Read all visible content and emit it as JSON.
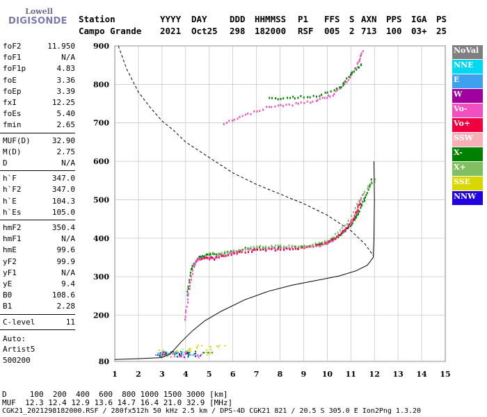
{
  "logo": {
    "line1": "Lowell",
    "line2": "DIGISONDE"
  },
  "header": {
    "labels": [
      "Station",
      "YYYY",
      "DAY",
      "DDD",
      "HHMMSS",
      "P1",
      "FFS",
      "S",
      "AXN",
      "PPS",
      "IGA",
      "PS"
    ],
    "values": [
      "Campo Grande",
      "2021",
      "Oct25",
      "298",
      "182000",
      "RSF",
      "005",
      "2",
      "713",
      "100",
      "03+",
      "25"
    ]
  },
  "params": {
    "g1": [
      {
        "k": "foF2",
        "v": "11.950"
      },
      {
        "k": "foF1",
        "v": "N/A"
      },
      {
        "k": "foF1p",
        "v": "4.83"
      },
      {
        "k": "foE",
        "v": "3.36"
      },
      {
        "k": "foEp",
        "v": "3.39"
      },
      {
        "k": "fxI",
        "v": "12.25"
      },
      {
        "k": "foEs",
        "v": "5.40"
      },
      {
        "k": "fmin",
        "v": "2.65"
      }
    ],
    "g2": [
      {
        "k": "MUF(D)",
        "v": "32.90"
      },
      {
        "k": "M(D)",
        "v": "2.75"
      },
      {
        "k": "D",
        "v": "N/A"
      }
    ],
    "g3": [
      {
        "k": "h`F",
        "v": "347.0"
      },
      {
        "k": "h`F2",
        "v": "347.0"
      },
      {
        "k": "h`E",
        "v": "104.3"
      },
      {
        "k": "h`Es",
        "v": "105.0"
      }
    ],
    "g4": [
      {
        "k": "hmF2",
        "v": "350.4"
      },
      {
        "k": "hmF1",
        "v": "N/A"
      },
      {
        "k": "hmE",
        "v": "99.6"
      },
      {
        "k": "yF2",
        "v": "99.9"
      },
      {
        "k": "yF1",
        "v": "N/A"
      },
      {
        "k": "yE",
        "v": "9.4"
      },
      {
        "k": "B0",
        "v": "108.6"
      },
      {
        "k": "B1",
        "v": "2.28"
      }
    ],
    "g5": [
      {
        "k": "C-level",
        "v": "11"
      }
    ],
    "g6": [
      "Auto:",
      "Artist5",
      "500200"
    ]
  },
  "legend": [
    {
      "label": "NoVal",
      "color": "#808080"
    },
    {
      "label": "NNE",
      "color": "#00d8f0"
    },
    {
      "label": "E",
      "color": "#3fa0f0"
    },
    {
      "label": "W",
      "color": "#a000a0"
    },
    {
      "label": "Vo-",
      "color": "#f050c0"
    },
    {
      "label": "Vo+",
      "color": "#f00040"
    },
    {
      "label": "SSW",
      "color": "#f8b0b8"
    },
    {
      "label": "X-",
      "color": "#008000"
    },
    {
      "label": "X+",
      "color": "#80c060"
    },
    {
      "label": "SSE",
      "color": "#d8d800"
    },
    {
      "label": "NNW",
      "color": "#2000e0"
    }
  ],
  "footer": {
    "d_line": "D     100  200  400  600  800 1000 1500 3000 [km]",
    "muf_line": "MUF  12.3 12.4 12.9 13.6 14.7 16.4 21.0 32.9 [MHz]",
    "file_line": "CGK21_2021298182000.RSF / 280fx512h 50 kHz 2.5 km / DPS-4D CGK21 821 / 20.5 S 305.0 E Ion2Png 1.3.20"
  },
  "chart_data": {
    "type": "scatter",
    "xlim": [
      1,
      15
    ],
    "ylim": [
      80,
      900
    ],
    "xticks": [
      1,
      2,
      3,
      4,
      5,
      6,
      7,
      8,
      9,
      10,
      11,
      12,
      13,
      14,
      15
    ],
    "yticks": [
      80,
      200,
      300,
      400,
      500,
      600,
      700,
      800,
      900
    ],
    "grid": true,
    "xlabel": "",
    "ylabel": "",
    "series": [
      {
        "legend": "X-",
        "style": "trace",
        "points": [
          [
            4.05,
            255
          ],
          [
            4.2,
            320
          ],
          [
            4.5,
            352
          ],
          [
            4.9,
            360
          ],
          [
            5.5,
            362
          ],
          [
            6.5,
            375
          ],
          [
            7.5,
            380
          ],
          [
            8.5,
            378
          ],
          [
            9.5,
            382
          ],
          [
            10.0,
            392
          ],
          [
            10.5,
            410
          ],
          [
            11.0,
            440
          ],
          [
            11.3,
            470
          ],
          [
            11.6,
            510
          ],
          [
            11.9,
            560
          ]
        ]
      },
      {
        "legend": "Vo-",
        "style": "trace",
        "points": [
          [
            3.95,
            190
          ],
          [
            4.1,
            260
          ],
          [
            4.3,
            330
          ],
          [
            4.5,
            350
          ],
          [
            5.0,
            352
          ],
          [
            5.6,
            358
          ],
          [
            6.2,
            368
          ],
          [
            7.0,
            375
          ],
          [
            8.0,
            376
          ],
          [
            9.0,
            378
          ],
          [
            9.8,
            385
          ],
          [
            10.3,
            400
          ],
          [
            10.8,
            430
          ],
          [
            11.2,
            470
          ],
          [
            11.5,
            520
          ]
        ]
      },
      {
        "legend": "Vo+",
        "style": "trace",
        "points": [
          [
            4.6,
            350
          ],
          [
            5.2,
            350
          ],
          [
            6.0,
            362
          ],
          [
            7.0,
            372
          ],
          [
            8.0,
            374
          ],
          [
            9.0,
            377
          ],
          [
            10.0,
            392
          ],
          [
            10.6,
            415
          ],
          [
            11.1,
            455
          ],
          [
            11.4,
            500
          ]
        ]
      },
      {
        "legend": "X+",
        "style": "trace",
        "points": [
          [
            5.0,
            362
          ],
          [
            6.0,
            368
          ],
          [
            7.0,
            380
          ],
          [
            8.0,
            382
          ],
          [
            9.0,
            383
          ],
          [
            10.0,
            395
          ],
          [
            10.8,
            440
          ],
          [
            11.5,
            520
          ],
          [
            12.1,
            560
          ]
        ]
      },
      {
        "legend": "Vo-",
        "style": "trace",
        "points": [
          [
            5.6,
            700
          ],
          [
            6.5,
            722
          ],
          [
            7.5,
            745
          ],
          [
            8.5,
            750
          ],
          [
            9.5,
            760
          ],
          [
            10.2,
            775
          ],
          [
            10.8,
            810
          ],
          [
            11.3,
            860
          ],
          [
            11.5,
            890
          ]
        ]
      },
      {
        "legend": "X-",
        "style": "trace",
        "points": [
          [
            7.5,
            765
          ],
          [
            8.5,
            768
          ],
          [
            9.5,
            772
          ],
          [
            10.5,
            792
          ],
          [
            11.0,
            830
          ],
          [
            11.5,
            860
          ]
        ]
      },
      {
        "legend": "SSE",
        "style": "cluster",
        "points": [
          [
            3.0,
            108
          ],
          [
            3.5,
            105
          ],
          [
            4.0,
            112
          ],
          [
            4.5,
            120
          ],
          [
            5.0,
            115
          ],
          [
            5.5,
            120
          ],
          [
            4.2,
            106
          ],
          [
            3.2,
            100
          ],
          [
            4.8,
            102
          ]
        ]
      },
      {
        "legend": "NNW",
        "style": "cluster",
        "points": [
          [
            2.8,
            98
          ],
          [
            3.2,
            102
          ],
          [
            3.6,
            103
          ],
          [
            4.0,
            100
          ],
          [
            4.4,
            98
          ],
          [
            3.0,
            100
          ],
          [
            3.8,
            97
          ]
        ]
      },
      {
        "legend": "Vo-",
        "style": "cluster",
        "points": [
          [
            2.9,
            100
          ],
          [
            3.3,
            96
          ],
          [
            3.7,
            99
          ],
          [
            4.1,
            102
          ],
          [
            3.5,
            104
          ],
          [
            4.6,
            96
          ]
        ]
      },
      {
        "legend": "X-",
        "style": "cluster",
        "points": [
          [
            3.1,
            99
          ],
          [
            3.6,
            101
          ],
          [
            4.3,
            103
          ],
          [
            4.9,
            101
          ],
          [
            3.9,
            105
          ]
        ]
      },
      {
        "legend": "NNE",
        "style": "cluster",
        "points": [
          [
            3.0,
            103
          ],
          [
            3.4,
            99
          ],
          [
            3.8,
            102
          ],
          [
            4.2,
            97
          ]
        ]
      }
    ],
    "profile": [
      [
        1,
        85
      ],
      [
        2,
        87
      ],
      [
        3,
        90
      ],
      [
        3.36,
        100
      ],
      [
        3.8,
        130
      ],
      [
        4.3,
        160
      ],
      [
        4.8,
        185
      ],
      [
        5.5,
        210
      ],
      [
        6.5,
        240
      ],
      [
        7.5,
        262
      ],
      [
        8.5,
        278
      ],
      [
        9.5,
        290
      ],
      [
        10.5,
        302
      ],
      [
        11.2,
        315
      ],
      [
        11.7,
        330
      ],
      [
        11.95,
        350.4
      ],
      [
        11.98,
        400
      ],
      [
        12.0,
        500
      ],
      [
        11.98,
        600
      ]
    ],
    "lower_curve": [
      [
        1,
        85
      ],
      [
        2,
        87
      ],
      [
        3,
        90
      ],
      [
        3.36,
        100
      ]
    ],
    "muf_curve": [
      [
        1.15,
        900
      ],
      [
        1.5,
        840
      ],
      [
        2,
        780
      ],
      [
        2.5,
        740
      ],
      [
        3,
        705
      ],
      [
        3.5,
        680
      ],
      [
        4,
        650
      ],
      [
        5,
        610
      ],
      [
        6,
        570
      ],
      [
        7,
        540
      ],
      [
        8,
        515
      ],
      [
        9,
        490
      ],
      [
        10,
        460
      ],
      [
        11,
        420
      ],
      [
        11.6,
        385
      ],
      [
        11.95,
        355
      ]
    ]
  }
}
